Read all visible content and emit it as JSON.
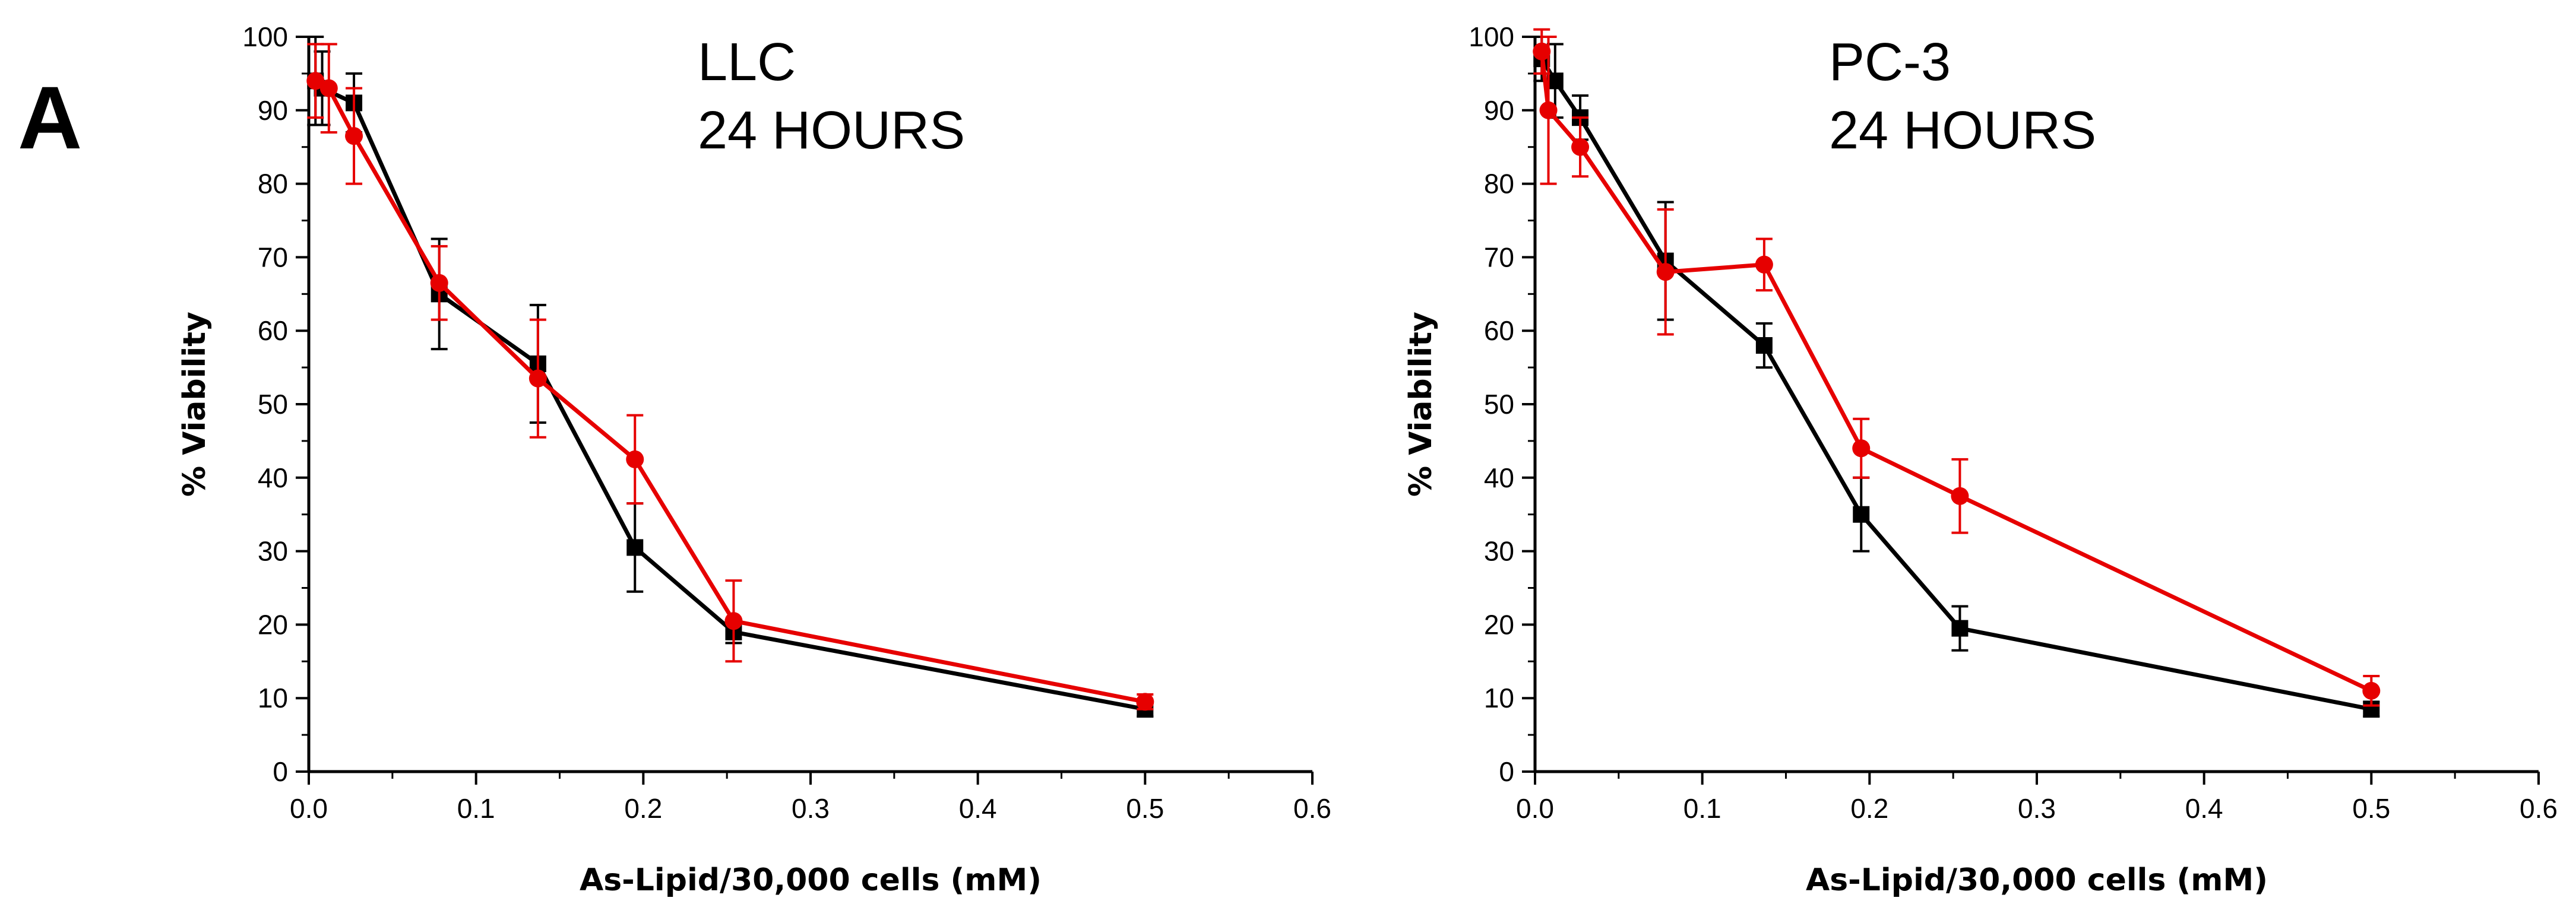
{
  "panel_label": "A",
  "chart_data": [
    {
      "type": "line",
      "annotation_lines": [
        "LLC",
        "24 HOURS"
      ],
      "xlabel": "As-Lipid/30,000 cells (mM)",
      "ylabel": "% Viability",
      "xlim": [
        0.0,
        0.6
      ],
      "ylim": [
        0,
        100
      ],
      "xticks": [
        "0.0",
        "0.1",
        "0.2",
        "0.3",
        "0.4",
        "0.5",
        "0.6"
      ],
      "yticks": [
        "0",
        "10",
        "20",
        "30",
        "40",
        "50",
        "60",
        "70",
        "80",
        "90",
        "100"
      ],
      "grid": false,
      "series": [
        {
          "name": "black",
          "color": "#000000",
          "marker": "square",
          "x": [
            0.004,
            0.008,
            0.027,
            0.078,
            0.137,
            0.195,
            0.254,
            0.5
          ],
          "y": [
            94,
            93,
            91,
            65,
            55.5,
            30.5,
            19,
            8.5
          ],
          "err": [
            6,
            5,
            4,
            7.5,
            8,
            6,
            1.5,
            1
          ]
        },
        {
          "name": "red",
          "color": "#e60000",
          "marker": "circle",
          "x": [
            0.004,
            0.012,
            0.027,
            0.078,
            0.137,
            0.195,
            0.254,
            0.5
          ],
          "y": [
            94,
            93,
            86.5,
            66.5,
            53.5,
            42.5,
            20.5,
            9.5
          ],
          "err": [
            5,
            6,
            6.5,
            5,
            8,
            6,
            5.5,
            1
          ]
        }
      ]
    },
    {
      "type": "line",
      "annotation_lines": [
        "PC-3",
        "24 HOURS"
      ],
      "xlabel": "As-Lipid/30,000 cells (mM)",
      "ylabel": "% Viability",
      "xlim": [
        0.0,
        0.6
      ],
      "ylim": [
        0,
        100
      ],
      "xticks": [
        "0.0",
        "0.1",
        "0.2",
        "0.3",
        "0.4",
        "0.5",
        "0.6"
      ],
      "yticks": [
        "0",
        "10",
        "20",
        "30",
        "40",
        "50",
        "60",
        "70",
        "80",
        "90",
        "100"
      ],
      "grid": false,
      "series": [
        {
          "name": "black",
          "color": "#000000",
          "marker": "square",
          "x": [
            0.004,
            0.012,
            0.027,
            0.078,
            0.137,
            0.195,
            0.254,
            0.5
          ],
          "y": [
            97,
            94,
            89,
            69.5,
            58,
            35,
            19.5,
            8.5
          ],
          "err": [
            3,
            5,
            3,
            8,
            3,
            5,
            3,
            1
          ]
        },
        {
          "name": "red",
          "color": "#e60000",
          "marker": "circle",
          "x": [
            0.004,
            0.008,
            0.027,
            0.078,
            0.137,
            0.195,
            0.254,
            0.5
          ],
          "y": [
            98,
            90,
            85,
            68,
            69,
            44,
            37.5,
            11
          ],
          "err": [
            3,
            10,
            4,
            8.5,
            3.5,
            4,
            5,
            2
          ]
        }
      ]
    }
  ]
}
